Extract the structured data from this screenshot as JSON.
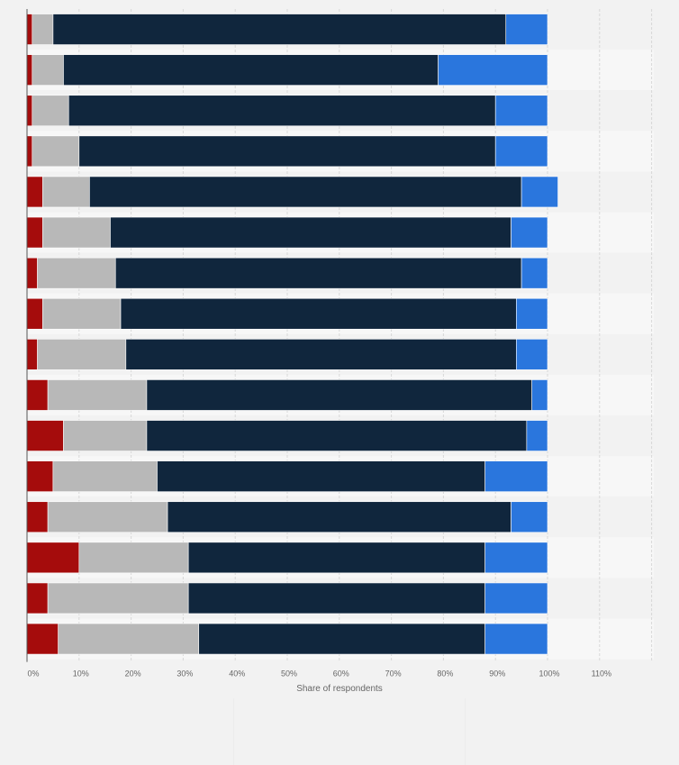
{
  "chart_data": {
    "type": "bar",
    "orientation": "horizontal",
    "stacked": true,
    "xlabel": "Share of respondents",
    "xlim": [
      0,
      120
    ],
    "xticks": [
      "0%",
      "10%",
      "20%",
      "30%",
      "40%",
      "50%",
      "60%",
      "70%",
      "80%",
      "90%",
      "100%",
      "110%"
    ],
    "grid": true,
    "categories": [
      "",
      "",
      "",
      "",
      "",
      "",
      "",
      "",
      "",
      "",
      "",
      "",
      "",
      "",
      "",
      ""
    ],
    "series": [
      {
        "color": "#a50c0c",
        "values": [
          1,
          1,
          1,
          1,
          3,
          3,
          2,
          3,
          2,
          4,
          7,
          5,
          4,
          10,
          4,
          6
        ]
      },
      {
        "color": "#b8b8b8",
        "values": [
          4,
          6,
          7,
          9,
          9,
          13,
          15,
          15,
          17,
          19,
          16,
          20,
          23,
          21,
          27,
          27
        ]
      },
      {
        "color": "#10263d",
        "values": [
          87,
          72,
          82,
          80,
          83,
          77,
          78,
          76,
          75,
          74,
          73,
          63,
          66,
          57,
          57,
          55
        ]
      },
      {
        "color": "#2a76dd",
        "values": [
          8,
          21,
          10,
          10,
          7,
          7,
          5,
          6,
          6,
          3,
          4,
          12,
          7,
          12,
          12,
          12
        ]
      }
    ]
  }
}
